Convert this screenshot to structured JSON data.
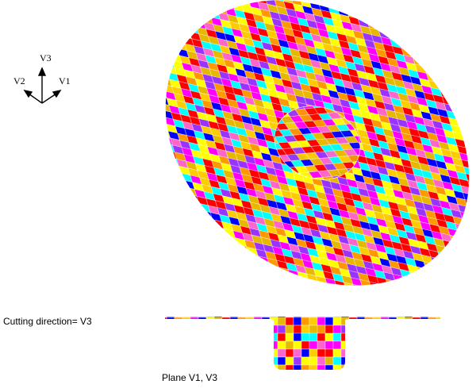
{
  "axes": {
    "v3": "V3",
    "v2": "V2",
    "v1": "V1"
  },
  "cutting_direction": "Cutting direction= V3",
  "plane_label": "Plane V1, V3"
}
